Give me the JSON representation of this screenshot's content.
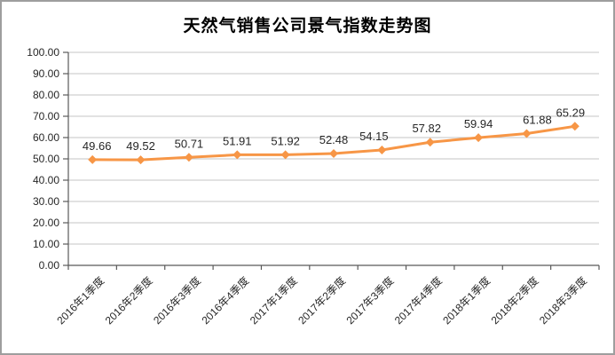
{
  "chart_data": {
    "type": "line",
    "title": "天然气销售公司景气指数走势图",
    "categories": [
      "2016年1季度",
      "2016年2季度",
      "2016年3季度",
      "2016年4季度",
      "2017年1季度",
      "2017年2季度",
      "2017年3季度",
      "2017年4季度",
      "2018年1季度",
      "2018年2季度",
      "2018年3季度"
    ],
    "values": [
      49.66,
      49.52,
      50.71,
      51.91,
      51.92,
      52.48,
      54.15,
      57.82,
      59.94,
      61.88,
      65.29
    ],
    "data_labels": [
      "49.66",
      "49.52",
      "50.71",
      "51.91",
      "51.92",
      "52.48",
      "54.15",
      "57.82",
      "59.94",
      "61.88",
      "65.29"
    ],
    "ylim": [
      0,
      100
    ],
    "ytick_interval": 10,
    "ytick_labels": [
      "0.00",
      "10.00",
      "20.00",
      "30.00",
      "40.00",
      "50.00",
      "60.00",
      "70.00",
      "80.00",
      "90.00",
      "100.00"
    ],
    "xlabel": "",
    "ylabel": "",
    "grid": true,
    "legend": "none",
    "marker": "diamond",
    "colors": {
      "line": "#F79646",
      "marker": "#F79646",
      "gridline": "#C6C6C6",
      "axis": "#595959",
      "title_text": "#000000",
      "label_text": "#262626",
      "frame_border": "#9E9E9E",
      "background": "#FFFFFF"
    }
  }
}
